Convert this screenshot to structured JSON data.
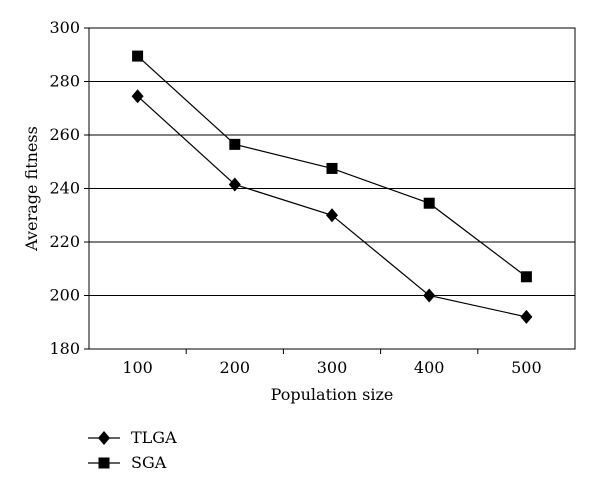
{
  "chart_data": {
    "type": "line",
    "title": "",
    "xlabel": "Population size",
    "ylabel": "Average fitness",
    "categories": [
      "100",
      "200",
      "300",
      "400",
      "500"
    ],
    "ylim": [
      180,
      300
    ],
    "yticks": [
      "180",
      "200",
      "220",
      "240",
      "260",
      "280",
      "300"
    ],
    "grid": "horizontal",
    "legend_position": "bottom-left",
    "series": [
      {
        "name": "TLGA",
        "marker": "diamond",
        "color": "#000000",
        "values": [
          274.5,
          241.5,
          230,
          200,
          192
        ]
      },
      {
        "name": "SGA",
        "marker": "square",
        "color": "#000000",
        "values": [
          289.5,
          256.5,
          247.5,
          234.5,
          207
        ]
      }
    ]
  }
}
